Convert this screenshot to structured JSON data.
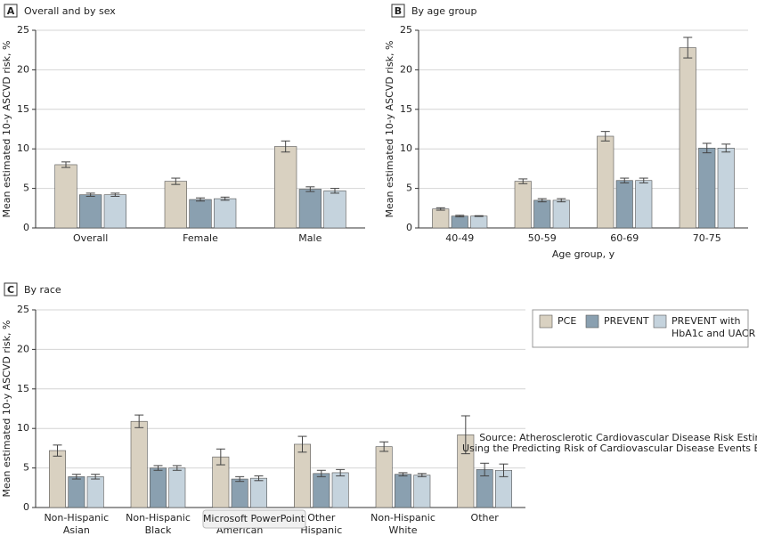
{
  "chart_data": [
    {
      "type": "bar",
      "panel": "A",
      "title": "Overall and by sex",
      "ylabel": "Mean estimated 10-y ASCVD risk, %",
      "categories": [
        "Overall",
        "Female",
        "Male"
      ],
      "series": [
        {
          "color": "#d9d1c1",
          "values": [
            8.0,
            5.9,
            10.3
          ],
          "errors": [
            0.35,
            0.4,
            0.7
          ]
        },
        {
          "color": "#8aa0b0",
          "values": [
            4.2,
            3.6,
            4.9
          ],
          "errors": [
            0.2,
            0.2,
            0.3
          ]
        },
        {
          "color": "#c5d3dd",
          "values": [
            4.2,
            3.7,
            4.7
          ],
          "errors": [
            0.2,
            0.2,
            0.3
          ]
        }
      ],
      "ylim": [
        0,
        25
      ],
      "yticks": [
        0,
        5,
        10,
        15,
        20,
        25
      ],
      "grid": true
    },
    {
      "type": "bar",
      "panel": "B",
      "title": "By age group",
      "ylabel": "Mean estimated 10-y ASCVD risk, %",
      "xlabel": "Age group, y",
      "categories": [
        "40-49",
        "50-59",
        "60-69",
        "70-75"
      ],
      "series": [
        {
          "color": "#d9d1c1",
          "values": [
            2.4,
            5.9,
            11.6,
            22.8
          ],
          "errors": [
            0.15,
            0.3,
            0.6,
            1.3
          ]
        },
        {
          "color": "#8aa0b0",
          "values": [
            1.5,
            3.5,
            6.0,
            10.1
          ],
          "errors": [
            0.1,
            0.2,
            0.3,
            0.6
          ]
        },
        {
          "color": "#c5d3dd",
          "values": [
            1.5,
            3.5,
            6.0,
            10.1
          ],
          "errors": [
            0.05,
            0.2,
            0.3,
            0.5
          ]
        }
      ],
      "ylim": [
        0,
        25
      ],
      "yticks": [
        0,
        5,
        10,
        15,
        20,
        25
      ],
      "grid": true
    },
    {
      "type": "bar",
      "panel": "C",
      "title": "By race",
      "ylabel": "Mean estimated 10-y ASCVD risk, %",
      "categories": [
        "Non-Hispanic\nAsian",
        "Non-Hispanic\nBlack",
        "Non-Hispanic\nAmerican",
        "Other\nHispanic",
        "Non-Hispanic\nWhite",
        "Other"
      ],
      "series": [
        {
          "name": "PCE",
          "color": "#d9d1c1",
          "values": [
            7.2,
            10.9,
            6.4,
            8.0,
            7.7,
            9.2
          ],
          "errors": [
            0.7,
            0.8,
            1.0,
            1.0,
            0.6,
            2.4
          ]
        },
        {
          "name": "PREVENT",
          "color": "#8aa0b0",
          "values": [
            3.9,
            5.0,
            3.6,
            4.3,
            4.2,
            4.8
          ],
          "errors": [
            0.3,
            0.3,
            0.3,
            0.4,
            0.2,
            0.8
          ]
        },
        {
          "name": "PREVENT with\nHbA1c and UACR",
          "color": "#c5d3dd",
          "values": [
            3.9,
            5.0,
            3.7,
            4.4,
            4.1,
            4.7
          ],
          "errors": [
            0.3,
            0.3,
            0.3,
            0.4,
            0.2,
            0.8
          ]
        }
      ],
      "ylim": [
        0,
        25
      ],
      "yticks": [
        0,
        5,
        10,
        15,
        20,
        25
      ],
      "grid": true,
      "legend": "upper right",
      "note": [
        "Source: Atherosclerotic Cardiovascular Disease Risk Estimates",
        "Using the Predicting Risk of Cardiovascular Disease Events Equations"
      ]
    }
  ],
  "tooltip": "Microsoft PowerPoint"
}
